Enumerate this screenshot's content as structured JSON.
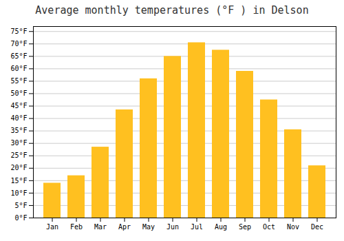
{
  "chart_data": {
    "type": "bar",
    "title": "Average monthly temperatures (°F ) in Delson",
    "categories": [
      "Jan",
      "Feb",
      "Mar",
      "Apr",
      "May",
      "Jun",
      "Jul",
      "Aug",
      "Sep",
      "Oct",
      "Nov",
      "Dec"
    ],
    "values": [
      14,
      17,
      28.5,
      43.5,
      56,
      65,
      70.5,
      67.5,
      59,
      47.5,
      35.5,
      21
    ],
    "color": "#FFC020",
    "ylim": [
      0,
      77
    ],
    "yticks": [
      {
        "value": 0,
        "label": "0°F"
      },
      {
        "value": 5,
        "label": "5°F"
      },
      {
        "value": 10,
        "label": "10°F"
      },
      {
        "value": 15,
        "label": "15°F"
      },
      {
        "value": 20,
        "label": "20°F"
      },
      {
        "value": 25,
        "label": "25°F"
      },
      {
        "value": 30,
        "label": "30°F"
      },
      {
        "value": 35,
        "label": "35°F"
      },
      {
        "value": 40,
        "label": "40°F"
      },
      {
        "value": 45,
        "label": "45°F"
      },
      {
        "value": 50,
        "label": "50°F"
      },
      {
        "value": 55,
        "label": "55°F"
      },
      {
        "value": 60,
        "label": "60°F"
      },
      {
        "value": 65,
        "label": "65°F"
      },
      {
        "value": 70,
        "label": "70°F"
      },
      {
        "value": 75,
        "label": "75°F"
      }
    ],
    "grid": true
  }
}
